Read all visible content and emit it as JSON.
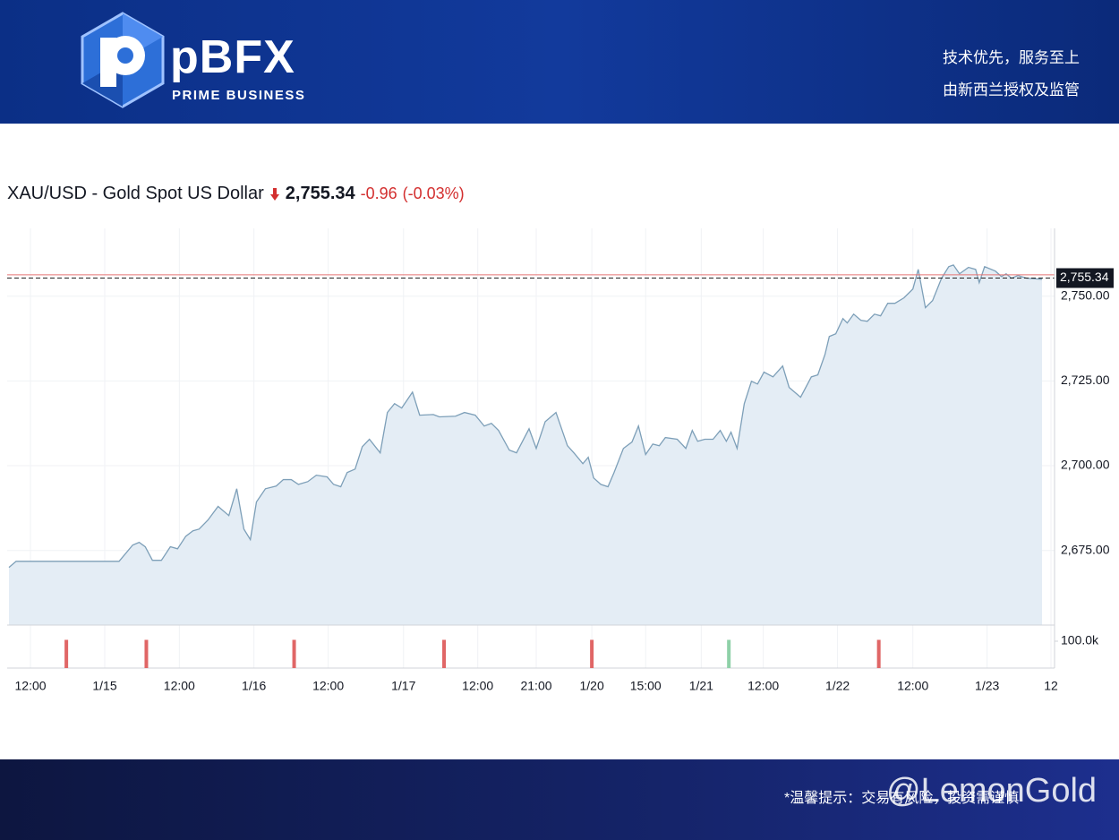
{
  "header": {
    "brand": "pBFX",
    "brand_subtitle": "PRIME BUSINESS",
    "slogan_1": "技术优先，服务至上",
    "slogan_2": "由新西兰授权及监管"
  },
  "footer": {
    "notice": "*温馨提示：交易有风险，投资需谨慎",
    "watermark": "@LemonGold"
  },
  "chart_data": {
    "type": "area",
    "title": "XAU/USD - Gold Spot US Dollar",
    "last": {
      "value": 2755.34,
      "label": "2,755.34"
    },
    "change": "-0.96",
    "change_percent": "(-0.03%)",
    "previous_close": 2756.3,
    "color": "#7d9fb8",
    "fill_color": "#e4edf5",
    "grid": true,
    "x": [
      0.25,
      1.25,
      15.6,
      17.5,
      18.4,
      19.25,
      20.25,
      21.5,
      22.75,
      23.75,
      24.9,
      25.9,
      26.75,
      28,
      29.4,
      30.9,
      32,
      33,
      33.9,
      34.75,
      36,
      37.5,
      38.5,
      39.6,
      40.6,
      41.9,
      43.1,
      44.6,
      45.5,
      46.5,
      47.4,
      48.5,
      49.5,
      50.5,
      52,
      53,
      54,
      55,
      56.5,
      57.5,
      59.4,
      60.25,
      62.5,
      63.75,
      65.25,
      66.5,
      67.5,
      68.5,
      70,
      71,
      72.75,
      73.75,
      75,
      76.5,
      78.1,
      79,
      80.25,
      81,
      81.75,
      82.75,
      83.75,
      84.6,
      85.9,
      87.1,
      88,
      89,
      90,
      90.9,
      91.75,
      93.4,
      94.6,
      95.5,
      96.25,
      97.25,
      98.4,
      99.4,
      100.25,
      100.9,
      101.75,
      102.75,
      103.75,
      104.6,
      105.5,
      106.75,
      108.1,
      109,
      110.6,
      112.1,
      113,
      114,
      114.6,
      115.5,
      116.5,
      117.1,
      118,
      119,
      119.9,
      120.9,
      121.75,
      122.75,
      123.75,
      125,
      126.25,
      127,
      128,
      129,
      130.25,
      131.25,
      131.9,
      132.75,
      134,
      135,
      135.5,
      136.25,
      137.75,
      138.6,
      139.25,
      140,
      140.9,
      142.1,
      144.25
    ],
    "values": [
      2670.0,
      2671.8,
      2671.8,
      2676.6,
      2677.4,
      2676.1,
      2672.1,
      2672.1,
      2676.1,
      2675.5,
      2679.2,
      2680.8,
      2681.3,
      2684.0,
      2688.0,
      2685.3,
      2693.2,
      2681.3,
      2678.2,
      2689.3,
      2693.2,
      2694.0,
      2695.9,
      2695.9,
      2694.5,
      2695.3,
      2697.2,
      2696.7,
      2694.5,
      2693.8,
      2698.0,
      2699.0,
      2705.6,
      2707.8,
      2703.8,
      2715.7,
      2718.3,
      2717.0,
      2721.7,
      2714.9,
      2715.1,
      2714.4,
      2714.6,
      2715.7,
      2714.9,
      2711.7,
      2712.5,
      2710.4,
      2704.6,
      2703.8,
      2710.9,
      2705.1,
      2713.0,
      2715.7,
      2705.9,
      2703.8,
      2700.6,
      2702.5,
      2696.4,
      2694.5,
      2693.8,
      2698.0,
      2705.1,
      2707.0,
      2711.7,
      2703.3,
      2706.4,
      2705.9,
      2708.3,
      2707.8,
      2705.1,
      2710.4,
      2707.2,
      2707.8,
      2707.8,
      2710.4,
      2707.2,
      2709.9,
      2705.1,
      2718.3,
      2724.9,
      2724.1,
      2727.6,
      2726.2,
      2729.4,
      2723.1,
      2720.2,
      2726.2,
      2726.8,
      2732.8,
      2738.1,
      2738.9,
      2743.4,
      2742.1,
      2744.7,
      2742.9,
      2742.6,
      2744.7,
      2744.2,
      2747.9,
      2747.9,
      2749.5,
      2752.1,
      2757.9,
      2746.6,
      2748.7,
      2755.3,
      2758.7,
      2759.2,
      2756.6,
      2758.5,
      2757.9,
      2754.0,
      2758.7,
      2757.4,
      2755.8,
      2756.6,
      2755.3,
      2756.1,
      2755.3,
      2755.0
    ],
    "xlim": [
      0,
      146
    ],
    "xticks": [
      {
        "value": 3.25,
        "label": "12:00"
      },
      {
        "value": 13.6,
        "label": "1/15"
      },
      {
        "value": 24,
        "label": "12:00"
      },
      {
        "value": 34.4,
        "label": "1/16"
      },
      {
        "value": 44.75,
        "label": "12:00"
      },
      {
        "value": 55.25,
        "label": "1/17"
      },
      {
        "value": 65.6,
        "label": "12:00"
      },
      {
        "value": 73.75,
        "label": "21:00"
      },
      {
        "value": 81.5,
        "label": "1/20"
      },
      {
        "value": 89,
        "label": "15:00"
      },
      {
        "value": 96.75,
        "label": "1/21"
      },
      {
        "value": 105.4,
        "label": "12:00"
      },
      {
        "value": 115.75,
        "label": "1/22"
      },
      {
        "value": 126.25,
        "label": "12:00"
      },
      {
        "value": 136.6,
        "label": "1/23"
      },
      {
        "value": 145.5,
        "label": "12"
      }
    ],
    "ylim": [
      2653,
      2770
    ],
    "yticks": [
      {
        "value": 2675,
        "label": "2,675.00"
      },
      {
        "value": 2700,
        "label": "2,700.00"
      },
      {
        "value": 2725,
        "label": "2,725.00"
      },
      {
        "value": 2750,
        "label": "2,750.00"
      }
    ],
    "volume": {
      "x": [
        8.25,
        19.4,
        40,
        60.9,
        81.5,
        100.6,
        121.5
      ],
      "values": [
        105000,
        105000,
        105000,
        105000,
        105000,
        105000,
        105000
      ],
      "colors": [
        "#e06666",
        "#e06666",
        "#e06666",
        "#e06666",
        "#e06666",
        "#8fd1a8",
        "#e06666"
      ],
      "ylim": [
        0,
        160000
      ],
      "yticks": [
        {
          "value": 100000,
          "label": "100.0k"
        }
      ]
    }
  }
}
